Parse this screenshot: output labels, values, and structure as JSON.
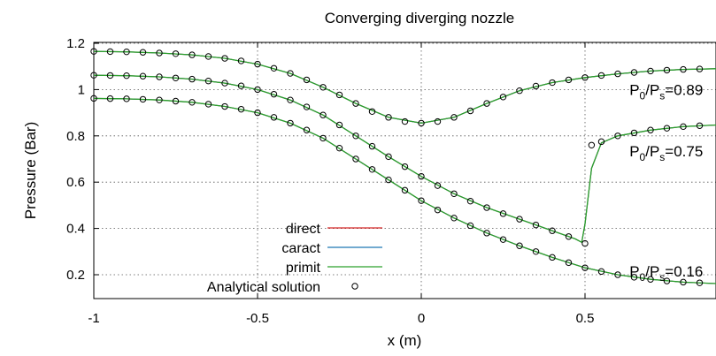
{
  "chart_data": {
    "type": "line",
    "title": "Converging diverging nozzle",
    "xlabel": "x (m)",
    "ylabel": "Pressure (Bar)",
    "xlim": [
      -1,
      1
    ],
    "ylim": [
      0.1,
      1.2
    ],
    "xticks": [
      {
        "value": -1,
        "label": "-1"
      },
      {
        "value": -0.5,
        "label": "-0.5"
      },
      {
        "value": 0,
        "label": "0"
      },
      {
        "value": 0.5,
        "label": "0.5"
      }
    ],
    "yticks": [
      {
        "value": 0.2,
        "label": "0.2"
      },
      {
        "value": 0.4,
        "label": "0.4"
      },
      {
        "value": 0.6,
        "label": "0.6"
      },
      {
        "value": 0.8,
        "label": "0.8"
      },
      {
        "value": 1.0,
        "label": "1"
      },
      {
        "value": 1.2,
        "label": "1.2"
      }
    ],
    "grid": "dotted at major ticks",
    "legend": {
      "position": "bottom-left",
      "entries": [
        {
          "name": "direct",
          "color": "#d62728",
          "style": "line"
        },
        {
          "name": "caract",
          "color": "#1f77b4",
          "style": "line"
        },
        {
          "name": "primit",
          "color": "#2ca02c",
          "style": "line"
        },
        {
          "name": "Analytical solution",
          "color": "#000000",
          "style": "open-circle"
        }
      ]
    },
    "annotations": [
      {
        "prefix": "P",
        "sub1": "0",
        "mid": "/P",
        "sub2": "s",
        "suffix": "=0.89",
        "x": 0.56,
        "y": 1.0
      },
      {
        "prefix": "P",
        "sub1": "0",
        "mid": "/P",
        "sub2": "s",
        "suffix": "=0.75",
        "x": 0.56,
        "y": 0.735
      },
      {
        "prefix": "P",
        "sub1": "0",
        "mid": "/P",
        "sub2": "s",
        "suffix": "=0.16",
        "x": 0.56,
        "y": 0.215
      }
    ],
    "series": [
      {
        "name": "P0/Ps=0.89",
        "x": [
          -1,
          -0.9,
          -0.8,
          -0.7,
          -0.6,
          -0.5,
          -0.4,
          -0.3,
          -0.2,
          -0.1,
          0,
          0.1,
          0.2,
          0.3,
          0.4,
          0.5,
          0.6,
          0.7,
          0.8,
          0.9,
          1.0
        ],
        "y": [
          1.165,
          1.163,
          1.158,
          1.15,
          1.135,
          1.11,
          1.07,
          1.01,
          0.94,
          0.88,
          0.855,
          0.88,
          0.94,
          0.995,
          1.03,
          1.052,
          1.068,
          1.08,
          1.087,
          1.09,
          1.093
        ]
      },
      {
        "name": "P0/Ps=0.75",
        "x": [
          -1,
          -0.9,
          -0.8,
          -0.7,
          -0.6,
          -0.5,
          -0.4,
          -0.3,
          -0.2,
          -0.1,
          0,
          0.1,
          0.2,
          0.3,
          0.4,
          0.47,
          0.49,
          0.5,
          0.52,
          0.55,
          0.6,
          0.7,
          0.8,
          0.9,
          1.0
        ],
        "y": [
          1.062,
          1.06,
          1.055,
          1.045,
          1.028,
          1.0,
          0.955,
          0.89,
          0.8,
          0.71,
          0.625,
          0.55,
          0.49,
          0.44,
          0.39,
          0.355,
          0.34,
          0.42,
          0.66,
          0.77,
          0.8,
          0.825,
          0.84,
          0.847,
          0.85
        ]
      },
      {
        "name": "P0/Ps=0.16",
        "x": [
          -1,
          -0.9,
          -0.8,
          -0.7,
          -0.6,
          -0.5,
          -0.4,
          -0.3,
          -0.2,
          -0.1,
          0,
          0.1,
          0.2,
          0.3,
          0.4,
          0.5,
          0.6,
          0.7,
          0.8,
          0.9,
          1.0
        ],
        "y": [
          0.962,
          0.96,
          0.955,
          0.945,
          0.927,
          0.9,
          0.855,
          0.79,
          0.7,
          0.61,
          0.52,
          0.445,
          0.38,
          0.325,
          0.275,
          0.23,
          0.2,
          0.18,
          0.168,
          0.162,
          0.16
        ]
      }
    ],
    "analytical_points": [
      {
        "name": "Analytical solution 0.89",
        "x": [
          -1,
          -0.95,
          -0.9,
          -0.85,
          -0.8,
          -0.75,
          -0.7,
          -0.65,
          -0.6,
          -0.55,
          -0.5,
          -0.45,
          -0.4,
          -0.35,
          -0.3,
          -0.25,
          -0.2,
          -0.15,
          -0.1,
          -0.05,
          0,
          0.05,
          0.1,
          0.15,
          0.2,
          0.25,
          0.3,
          0.35,
          0.4,
          0.45,
          0.5,
          0.55,
          0.6,
          0.65,
          0.7,
          0.75,
          0.8,
          0.85,
          0.9,
          0.95,
          1.0
        ],
        "y": [
          1.165,
          1.164,
          1.163,
          1.161,
          1.158,
          1.155,
          1.15,
          1.143,
          1.135,
          1.124,
          1.11,
          1.092,
          1.07,
          1.042,
          1.01,
          0.977,
          0.94,
          0.905,
          0.88,
          0.862,
          0.855,
          0.862,
          0.88,
          0.908,
          0.94,
          0.968,
          0.995,
          1.015,
          1.03,
          1.042,
          1.052,
          1.061,
          1.068,
          1.074,
          1.08,
          1.084,
          1.087,
          1.089,
          1.09,
          1.092,
          1.093
        ]
      },
      {
        "name": "Analytical solution 0.75",
        "x": [
          -1,
          -0.95,
          -0.9,
          -0.85,
          -0.8,
          -0.75,
          -0.7,
          -0.65,
          -0.6,
          -0.55,
          -0.5,
          -0.45,
          -0.4,
          -0.35,
          -0.3,
          -0.25,
          -0.2,
          -0.15,
          -0.1,
          -0.05,
          0,
          0.05,
          0.1,
          0.15,
          0.2,
          0.25,
          0.3,
          0.35,
          0.4,
          0.45,
          0.5,
          0.52,
          0.55,
          0.6,
          0.65,
          0.7,
          0.75,
          0.8,
          0.85,
          0.9,
          0.95,
          1.0
        ],
        "y": [
          1.062,
          1.061,
          1.06,
          1.058,
          1.055,
          1.05,
          1.045,
          1.037,
          1.028,
          1.016,
          1.0,
          0.98,
          0.955,
          0.925,
          0.89,
          0.847,
          0.8,
          0.755,
          0.71,
          0.667,
          0.625,
          0.585,
          0.55,
          0.518,
          0.49,
          0.464,
          0.44,
          0.415,
          0.39,
          0.365,
          0.335,
          0.76,
          0.775,
          0.8,
          0.813,
          0.825,
          0.833,
          0.84,
          0.844,
          0.847,
          0.849,
          0.85
        ]
      },
      {
        "name": "Analytical solution 0.16",
        "x": [
          -1,
          -0.95,
          -0.9,
          -0.85,
          -0.8,
          -0.75,
          -0.7,
          -0.65,
          -0.6,
          -0.55,
          -0.5,
          -0.45,
          -0.4,
          -0.35,
          -0.3,
          -0.25,
          -0.2,
          -0.15,
          -0.1,
          -0.05,
          0,
          0.05,
          0.1,
          0.15,
          0.2,
          0.25,
          0.3,
          0.35,
          0.4,
          0.45,
          0.5,
          0.55,
          0.6,
          0.65,
          0.7,
          0.75,
          0.8,
          0.85,
          0.9,
          0.95,
          1.0
        ],
        "y": [
          0.962,
          0.961,
          0.96,
          0.958,
          0.955,
          0.95,
          0.945,
          0.937,
          0.927,
          0.915,
          0.9,
          0.88,
          0.855,
          0.825,
          0.79,
          0.747,
          0.7,
          0.655,
          0.61,
          0.565,
          0.52,
          0.48,
          0.445,
          0.412,
          0.38,
          0.352,
          0.325,
          0.3,
          0.275,
          0.252,
          0.23,
          0.214,
          0.2,
          0.189,
          0.18,
          0.173,
          0.168,
          0.165,
          0.162,
          0.161,
          0.16
        ]
      }
    ]
  }
}
